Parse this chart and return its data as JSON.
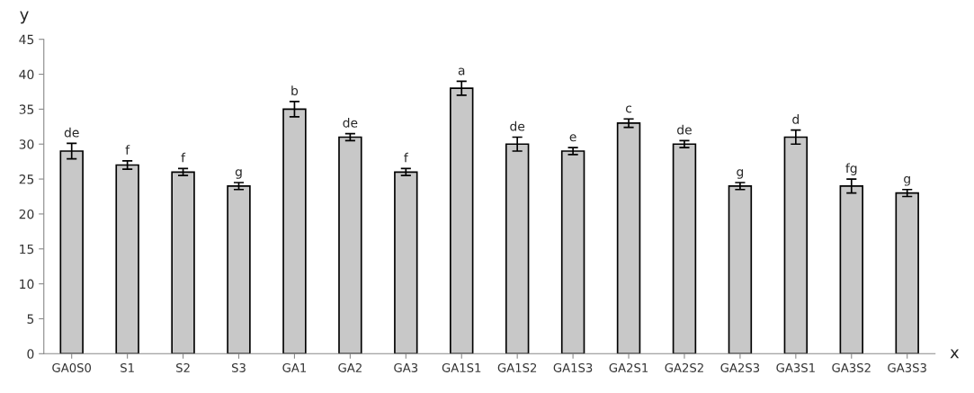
{
  "chart_data": {
    "type": "bar",
    "xlabel": "x",
    "ylabel": "y",
    "categories": [
      "GA0S0",
      "S1",
      "S2",
      "S3",
      "GA1",
      "GA2",
      "GA3",
      "GA1S1",
      "GA1S2",
      "GA1S3",
      "GA2S1",
      "GA2S2",
      "GA2S3",
      "GA3S1",
      "GA3S2",
      "GA3S3"
    ],
    "values": [
      29,
      27,
      26,
      24,
      35,
      31,
      26,
      38,
      30,
      29,
      33,
      30,
      24,
      31,
      24,
      23
    ],
    "errors": [
      1.1,
      0.6,
      0.5,
      0.5,
      1.1,
      0.5,
      0.5,
      1.0,
      1.0,
      0.5,
      0.6,
      0.5,
      0.5,
      1.0,
      1.0,
      0.5
    ],
    "value_labels": [
      "de",
      "f",
      "f",
      "g",
      "b",
      "de",
      "f",
      "a",
      "de",
      "e",
      "c",
      "de",
      "g",
      "d",
      "fg",
      "g"
    ],
    "color": "#c8c8c8",
    "ylim": [
      0,
      45
    ],
    "yticks": [
      0,
      5,
      10,
      15,
      20,
      25,
      30,
      35,
      40,
      45
    ],
    "grid": false
  }
}
